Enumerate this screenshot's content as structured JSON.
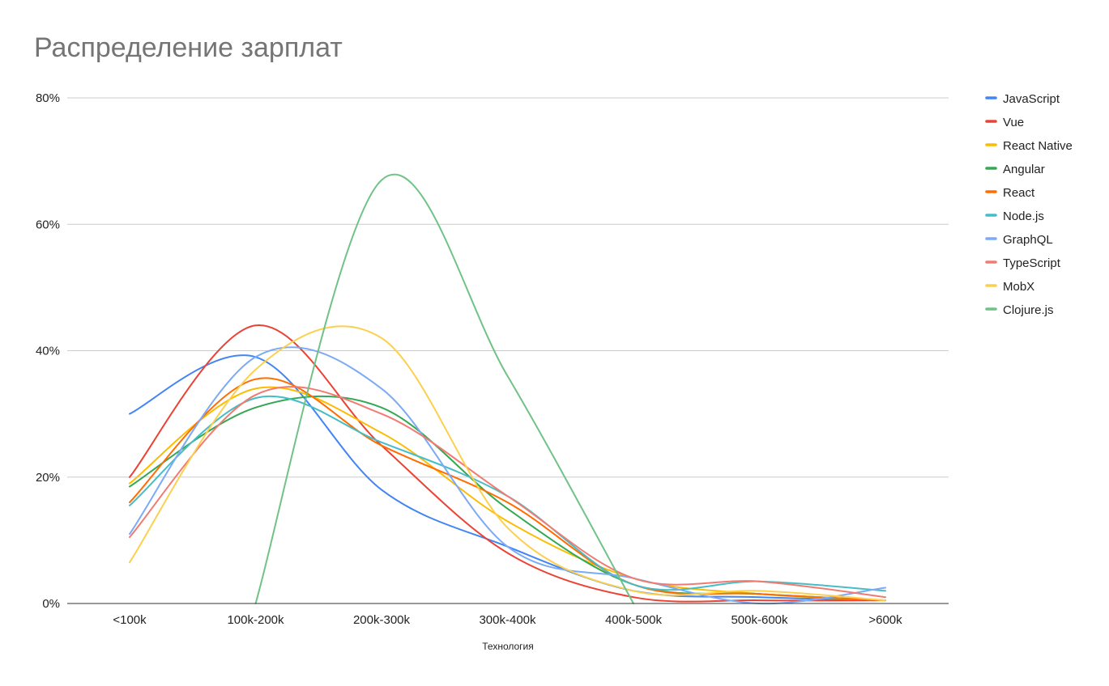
{
  "chart_data": {
    "type": "line",
    "title": "Распределение зарплат",
    "xlabel": "Технология",
    "ylabel": "",
    "categories": [
      "<100k",
      "100k-200k",
      "200k-300k",
      "300k-400k",
      "400k-500k",
      "500k-600k",
      ">600k"
    ],
    "ylim": [
      0,
      0.8
    ],
    "yticks": [
      "0%",
      "20%",
      "40%",
      "60%",
      "80%"
    ],
    "grid": true,
    "smooth": true,
    "legend_position": "right",
    "series": [
      {
        "name": "JavaScript",
        "color": "#4285f4",
        "values": [
          0.3,
          0.39,
          0.18,
          0.09,
          0.02,
          0.01,
          0.005
        ]
      },
      {
        "name": "Vue",
        "color": "#ea4335",
        "values": [
          0.2,
          0.44,
          0.25,
          0.08,
          0.01,
          0.005,
          0.005
        ]
      },
      {
        "name": "React Native",
        "color": "#fbbc04",
        "values": [
          0.19,
          0.34,
          0.27,
          0.13,
          0.04,
          0.015,
          0.005
        ]
      },
      {
        "name": "Angular",
        "color": "#34a853",
        "values": [
          0.185,
          0.31,
          0.31,
          0.15,
          0.03,
          0.015,
          0.005
        ]
      },
      {
        "name": "React",
        "color": "#ff6d01",
        "values": [
          0.16,
          0.355,
          0.25,
          0.16,
          0.03,
          0.015,
          0.005
        ]
      },
      {
        "name": "Node.js",
        "color": "#46bdc6",
        "values": [
          0.155,
          0.325,
          0.255,
          0.17,
          0.03,
          0.035,
          0.02
        ]
      },
      {
        "name": "GraphQL",
        "color": "#7baaf7",
        "values": [
          0.11,
          0.39,
          0.34,
          0.09,
          0.04,
          0.0,
          0.025
        ]
      },
      {
        "name": "TypeScript",
        "color": "#f07b72",
        "values": [
          0.105,
          0.33,
          0.3,
          0.17,
          0.04,
          0.035,
          0.01
        ]
      },
      {
        "name": "MobX",
        "color": "#fcd04f",
        "values": [
          0.065,
          0.37,
          0.42,
          0.12,
          0.02,
          0.02,
          0.005
        ]
      },
      {
        "name": "Clojure.js",
        "color": "#71c287",
        "values": [
          null,
          0.0,
          0.67,
          0.36,
          0.0,
          null,
          null
        ]
      }
    ]
  }
}
